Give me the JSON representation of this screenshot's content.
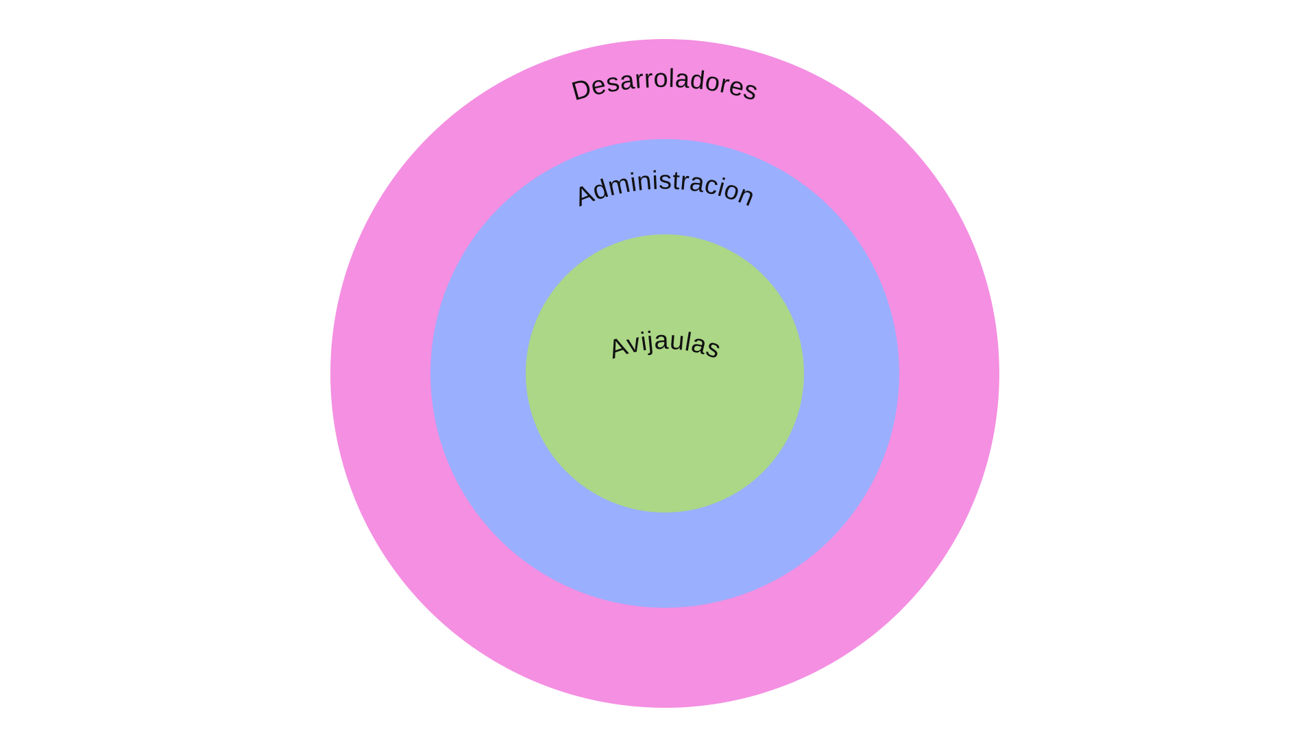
{
  "diagram": {
    "rings": [
      {
        "label": "Desarroladores",
        "color": "#f48fe2"
      },
      {
        "label": "Administracion",
        "color": "#9aaffe"
      },
      {
        "label": "Avijaulas",
        "color": "#abd786"
      }
    ]
  }
}
